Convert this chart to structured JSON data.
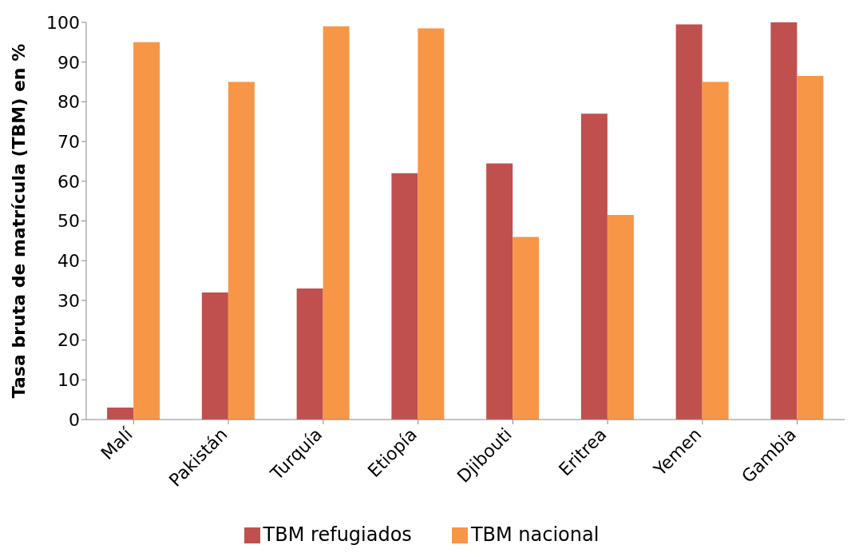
{
  "chart_data": {
    "type": "bar",
    "ylabel": "Tasa bruta de matrícula (TBM) en %",
    "categories": [
      "Malí",
      "Pakistán",
      "Turquía",
      "Etiopía",
      "Djibouti",
      "Eritrea",
      "Yemen",
      "Gambia"
    ],
    "series": [
      {
        "name": "TBM refugiados",
        "color": "#c0504d",
        "values": [
          3,
          32,
          33,
          62,
          64.5,
          77,
          99.5,
          100
        ]
      },
      {
        "name": "TBM nacional",
        "color": "#f79646",
        "values": [
          95,
          85,
          99,
          98.5,
          46,
          51.5,
          85,
          86.5
        ]
      }
    ],
    "ylim": [
      0,
      100
    ],
    "yticks": [
      0,
      10,
      20,
      30,
      40,
      50,
      60,
      70,
      80,
      90,
      100
    ],
    "grid": false,
    "legend": "bottom"
  }
}
